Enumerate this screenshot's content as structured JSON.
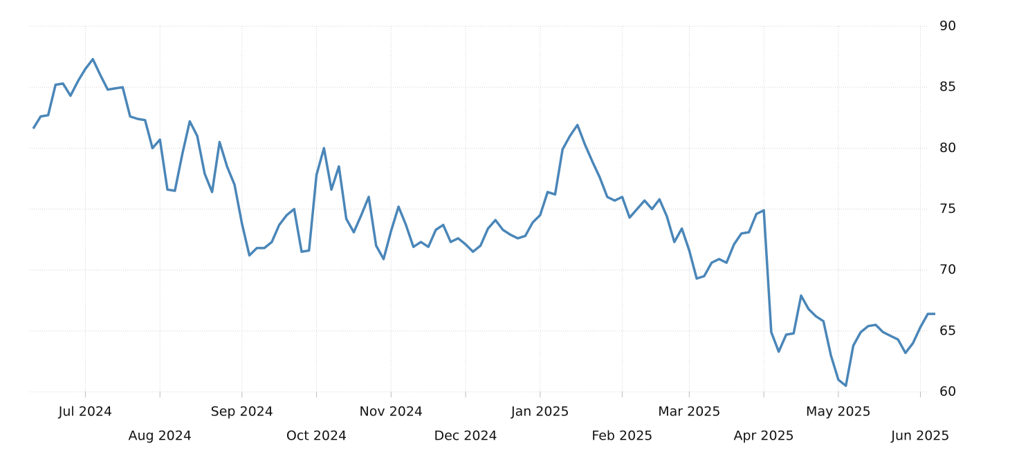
{
  "chart_data": {
    "type": "line",
    "categories": [
      null,
      null,
      null,
      null,
      null,
      null,
      null,
      "Jul 2024",
      null,
      null,
      null,
      null,
      null,
      null,
      null,
      null,
      null,
      "Aug 2024",
      null,
      null,
      null,
      null,
      null,
      null,
      null,
      null,
      null,
      null,
      "Sep 2024",
      null,
      null,
      null,
      null,
      null,
      null,
      null,
      null,
      null,
      "Oct 2024",
      null,
      null,
      null,
      null,
      null,
      null,
      null,
      null,
      null,
      "Nov 2024",
      null,
      null,
      null,
      null,
      null,
      null,
      null,
      null,
      null,
      "Dec 2024",
      null,
      null,
      null,
      null,
      null,
      null,
      null,
      null,
      null,
      "Jan 2025",
      null,
      null,
      null,
      null,
      null,
      null,
      null,
      null,
      null,
      null,
      "Feb 2025",
      null,
      null,
      null,
      null,
      null,
      null,
      null,
      null,
      "Mar 2025",
      null,
      null,
      null,
      null,
      null,
      null,
      null,
      null,
      null,
      "Apr 2025",
      null,
      null,
      null,
      null,
      null,
      null,
      null,
      null,
      null,
      "May 2025",
      null,
      null,
      null,
      null,
      null,
      null,
      null,
      null,
      null,
      null,
      "Jun 2025",
      null,
      null
    ],
    "values": [
      81.6,
      82.6,
      82.7,
      85.2,
      85.3,
      84.3,
      85.5,
      86.5,
      87.3,
      86,
      84.8,
      84.9,
      85,
      82.6,
      82.4,
      82.3,
      80,
      80.7,
      76.6,
      76.5,
      79.5,
      82.2,
      81,
      77.9,
      76.4,
      80.5,
      78.5,
      77,
      73.8,
      71.2,
      71.8,
      71.8,
      72.3,
      73.7,
      74.5,
      75,
      71.5,
      71.6,
      77.8,
      80,
      76.6,
      78.5,
      74.2,
      73.1,
      74.5,
      76,
      72,
      70.9,
      73.2,
      75.2,
      73.7,
      71.9,
      72.3,
      71.9,
      73.3,
      73.7,
      72.3,
      72.6,
      72.1,
      71.5,
      72,
      73.4,
      74.1,
      73.3,
      72.9,
      72.6,
      72.8,
      73.9,
      74.5,
      76.4,
      76.2,
      79.9,
      81,
      81.9,
      80.3,
      78.9,
      77.6,
      76,
      75.7,
      76,
      74.3,
      75,
      75.7,
      75,
      75.8,
      74.4,
      72.3,
      73.4,
      71.6,
      69.3,
      69.5,
      70.6,
      70.9,
      70.6,
      72.1,
      73,
      73.1,
      74.6,
      74.9,
      64.9,
      63.3,
      64.7,
      64.8,
      67.9,
      66.8,
      66.2,
      65.8,
      63,
      61,
      60.5,
      63.8,
      64.9,
      65.4,
      65.5,
      64.9,
      64.6,
      64.3,
      63.2,
      64,
      65.3,
      66.4,
      66.4
    ],
    "color": "#4a86b8",
    "ylim": [
      60,
      90
    ],
    "yticks": [
      60,
      65,
      70,
      75,
      80,
      85,
      90
    ],
    "grid": true
  }
}
